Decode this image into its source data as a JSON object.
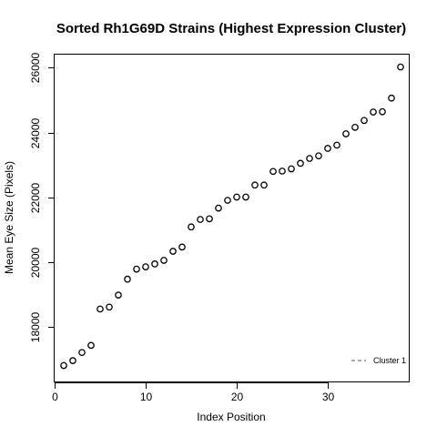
{
  "chart_data": {
    "type": "scatter",
    "title": "Sorted Rh1G69D Strains (Highest Expression Cluster)",
    "xlabel": "Index Position",
    "ylabel": "Mean Eye Size (Pixels)",
    "xlim": [
      0,
      39
    ],
    "ylim": [
      16300,
      26400
    ],
    "xticks": [
      0,
      10,
      20,
      30
    ],
    "yticks": [
      18000,
      20000,
      22000,
      24000,
      26000
    ],
    "grid": false,
    "legend_position": "bottom-right",
    "series": [
      {
        "name": "Cluster 1",
        "marker": "open-circle",
        "x": [
          1,
          2,
          3,
          4,
          5,
          6,
          7,
          8,
          9,
          10,
          11,
          12,
          13,
          14,
          15,
          16,
          17,
          18,
          19,
          20,
          21,
          22,
          23,
          24,
          25,
          26,
          27,
          28,
          29,
          30,
          31,
          32,
          33,
          34,
          35,
          36,
          37,
          38
        ],
        "y": [
          16820,
          16970,
          17220,
          17440,
          18560,
          18620,
          18990,
          19480,
          19790,
          19860,
          19950,
          20060,
          20340,
          20470,
          21090,
          21320,
          21340,
          21670,
          21910,
          22010,
          22010,
          22380,
          22380,
          22800,
          22810,
          22880,
          23050,
          23200,
          23280,
          23510,
          23610,
          23960,
          24160,
          24370,
          24630,
          24640,
          25060,
          26020
        ]
      }
    ]
  },
  "legend": {
    "items": [
      {
        "label": "Cluster 1",
        "line_style": "dashed",
        "color": "#555555"
      }
    ]
  }
}
